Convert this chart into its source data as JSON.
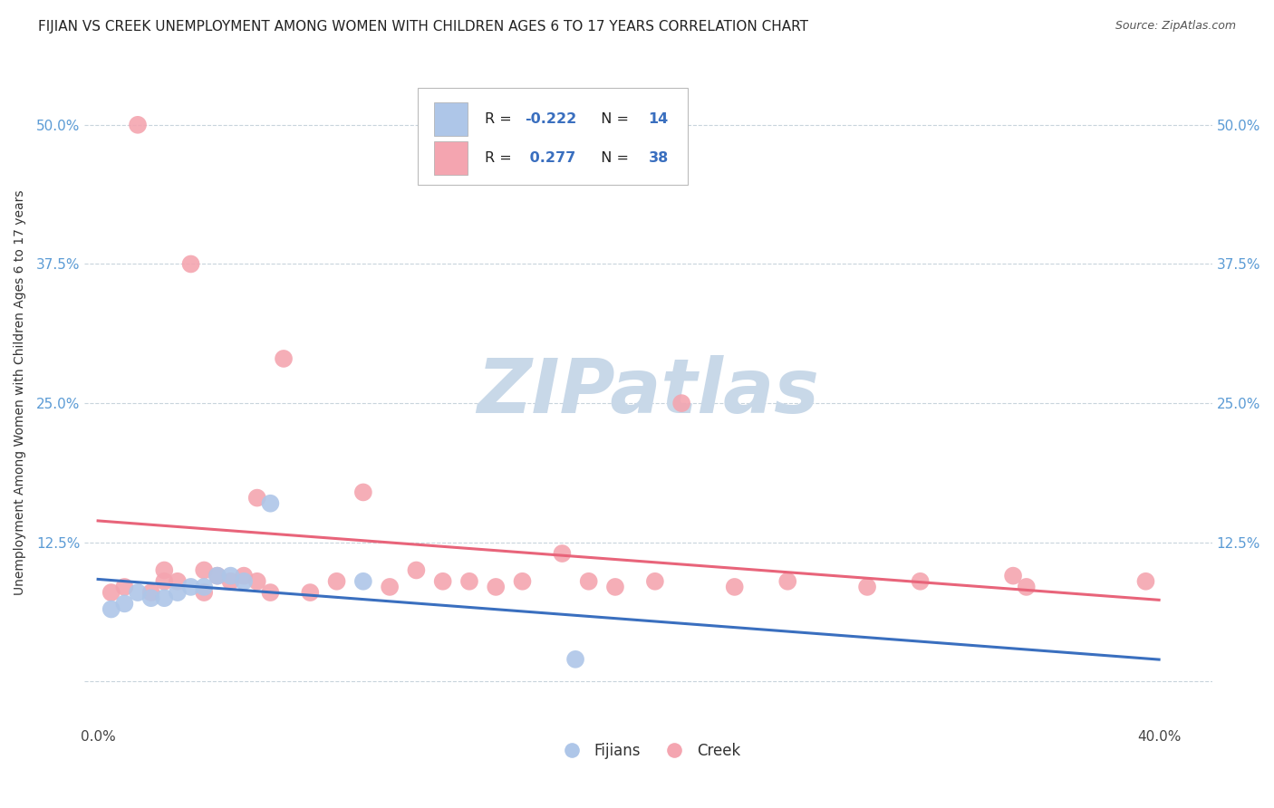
{
  "title": "FIJIAN VS CREEK UNEMPLOYMENT AMONG WOMEN WITH CHILDREN AGES 6 TO 17 YEARS CORRELATION CHART",
  "source": "Source: ZipAtlas.com",
  "ylabel": "Unemployment Among Women with Children Ages 6 to 17 years",
  "xlim": [
    -0.005,
    0.42
  ],
  "ylim": [
    -0.04,
    0.56
  ],
  "ytick_vals": [
    0.0,
    0.125,
    0.25,
    0.375,
    0.5
  ],
  "ytick_labels_left": [
    "",
    "12.5%",
    "25.0%",
    "37.5%",
    "50.0%"
  ],
  "ytick_labels_right": [
    "",
    "12.5%",
    "25.0%",
    "37.5%",
    "50.0%"
  ],
  "xtick_vals": [
    0.0,
    0.4
  ],
  "xtick_labels": [
    "0.0%",
    "40.0%"
  ],
  "fijian_R": -0.222,
  "fijian_N": 14,
  "creek_R": 0.277,
  "creek_N": 38,
  "fijian_color": "#aec6e8",
  "creek_color": "#f4a5b0",
  "fijian_line_color": "#3a6fbf",
  "creek_line_color": "#e8647a",
  "watermark": "ZIPatlas",
  "watermark_color": "#c8d8e8",
  "background_color": "#ffffff",
  "grid_color": "#c8d4dc",
  "fijian_x": [
    0.005,
    0.01,
    0.015,
    0.02,
    0.025,
    0.03,
    0.035,
    0.04,
    0.045,
    0.05,
    0.055,
    0.065,
    0.1,
    0.18
  ],
  "fijian_y": [
    0.065,
    0.07,
    0.08,
    0.075,
    0.075,
    0.08,
    0.085,
    0.085,
    0.095,
    0.095,
    0.09,
    0.16,
    0.09,
    0.02
  ],
  "creek_x": [
    0.005,
    0.01,
    0.015,
    0.02,
    0.025,
    0.025,
    0.03,
    0.035,
    0.04,
    0.04,
    0.045,
    0.05,
    0.055,
    0.06,
    0.065,
    0.07,
    0.08,
    0.09,
    0.1,
    0.11,
    0.12,
    0.13,
    0.14,
    0.15,
    0.16,
    0.175,
    0.185,
    0.195,
    0.21,
    0.22,
    0.24,
    0.26,
    0.29,
    0.31,
    0.345,
    0.35,
    0.395,
    0.06
  ],
  "creek_y": [
    0.08,
    0.085,
    0.5,
    0.08,
    0.1,
    0.09,
    0.09,
    0.375,
    0.1,
    0.08,
    0.095,
    0.09,
    0.095,
    0.09,
    0.08,
    0.29,
    0.08,
    0.09,
    0.17,
    0.085,
    0.1,
    0.09,
    0.09,
    0.085,
    0.09,
    0.115,
    0.09,
    0.085,
    0.09,
    0.25,
    0.085,
    0.09,
    0.085,
    0.09,
    0.095,
    0.085,
    0.09,
    0.165
  ]
}
